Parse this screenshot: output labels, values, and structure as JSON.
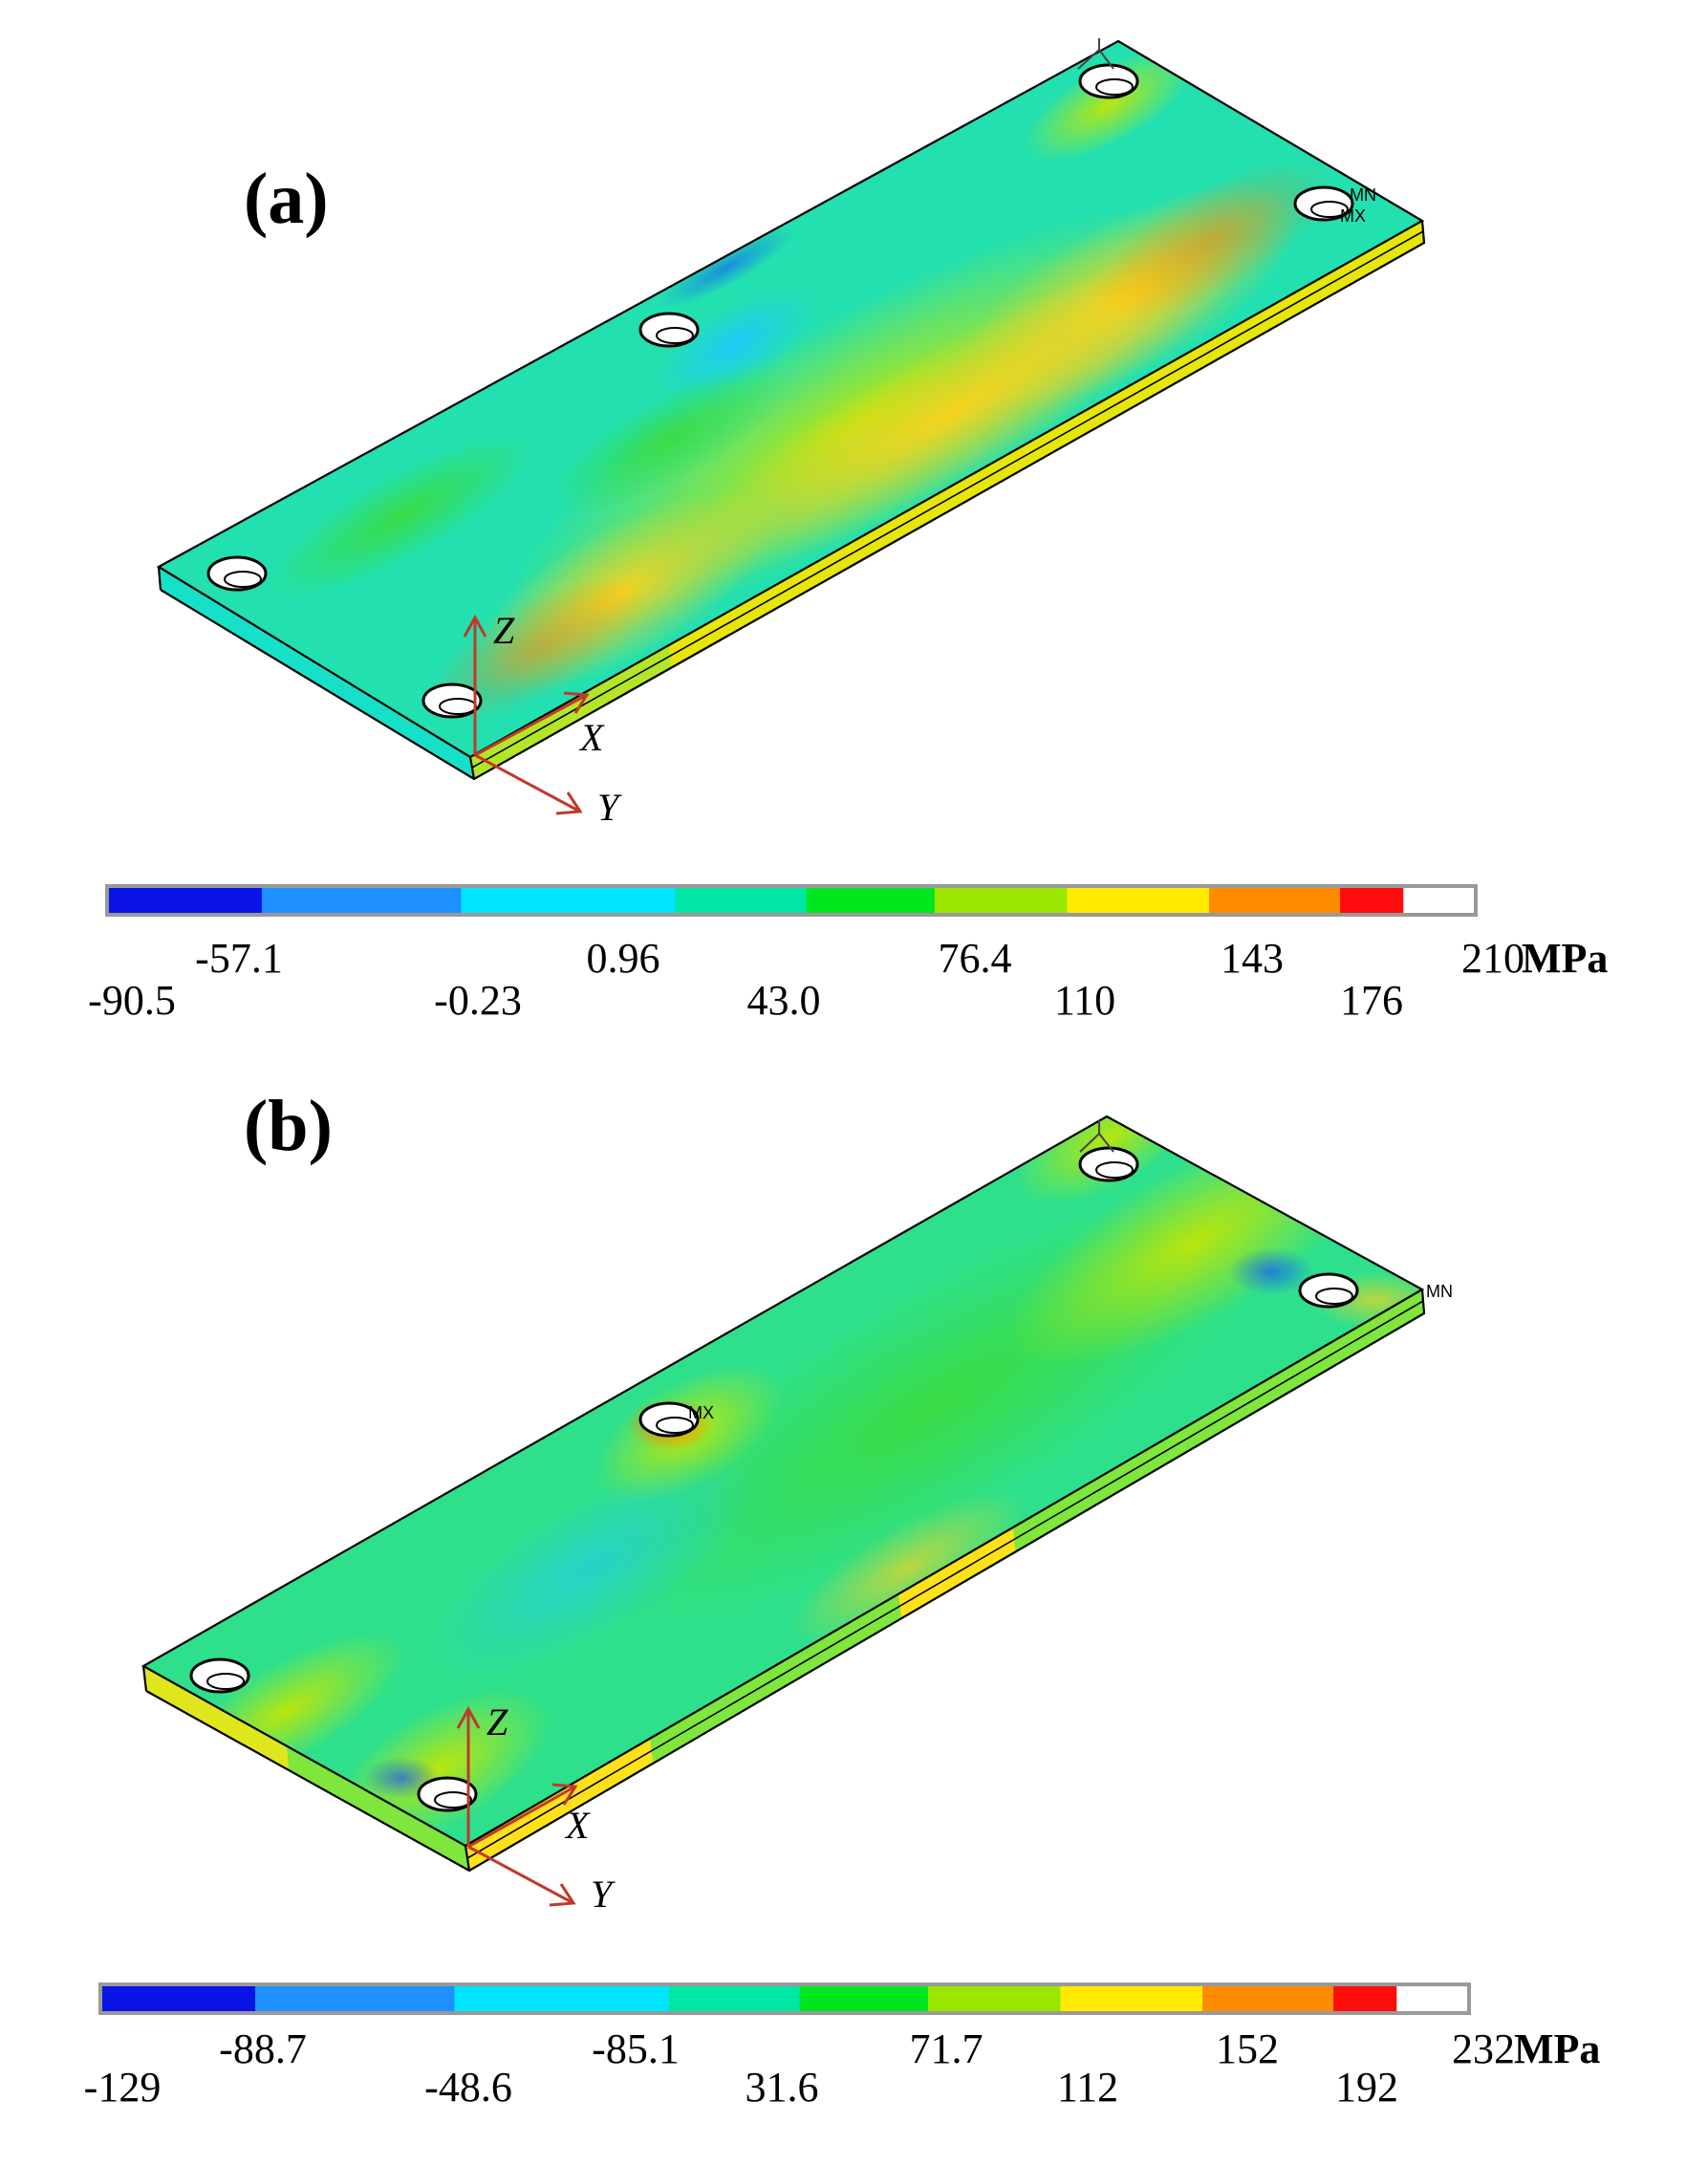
{
  "panels": [
    {
      "label": "(a)",
      "colorbar": {
        "colors": [
          "#0a14e6",
          "#1e90ff",
          "#00e5ff",
          "#00e6a5",
          "#00e61e",
          "#9be600",
          "#ffea00",
          "#ff8c00",
          "#ff0d0d"
        ],
        "ticks_upper": [
          "-57.1",
          "0.96",
          "76.4",
          "143",
          "210"
        ],
        "ticks_lower": [
          "-90.5",
          "-0.23",
          "43.0",
          "110",
          "176"
        ],
        "unit": "MPa"
      },
      "node_labels": {
        "mn": "MN",
        "mx": "MX"
      },
      "axes": {
        "z": "Z",
        "x": "X",
        "y": "Y"
      }
    },
    {
      "label": "(b)",
      "colorbar": {
        "colors": [
          "#0a14e6",
          "#1e90ff",
          "#00e5ff",
          "#00e6a5",
          "#00e61e",
          "#9be600",
          "#ffea00",
          "#ff8c00",
          "#ff0d0d"
        ],
        "ticks_upper": [
          "-88.7",
          "-85.1",
          "71.7",
          "152",
          "232"
        ],
        "ticks_lower": [
          "-129",
          "-48.6",
          "31.6",
          "112",
          "192"
        ],
        "unit": "MPa"
      },
      "node_labels": {
        "mn": "MN",
        "mx": "MX"
      },
      "axes": {
        "z": "Z",
        "x": "X",
        "y": "Y"
      }
    }
  ]
}
